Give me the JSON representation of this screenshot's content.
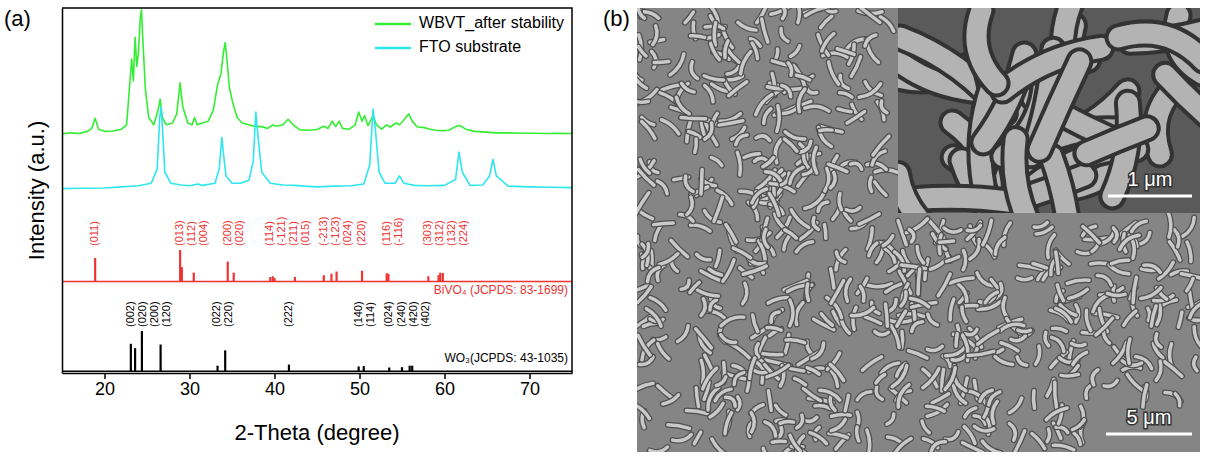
{
  "chart_data": {
    "type": "line",
    "panel_label": "(a)",
    "xlabel": "2-Theta (degree)",
    "ylabel": "Intensity (a.u.)",
    "xlim": [
      15,
      75
    ],
    "xticks": [
      20,
      30,
      40,
      50,
      60,
      70
    ],
    "ylim": [
      0,
      100
    ],
    "tick_labels": "x",
    "legend": "upper right",
    "series": [
      {
        "name": "WBVT_after stability",
        "type": "line",
        "color": "#33ee33",
        "x": [
          15,
          16,
          17,
          18,
          18.5,
          18.9,
          19.3,
          20,
          21,
          22,
          22.6,
          23.0,
          23.2,
          23.4,
          23.6,
          23.8,
          24.0,
          24.2,
          24.35,
          24.5,
          24.8,
          25.2,
          25.8,
          26.3,
          26.55,
          26.8,
          27.3,
          28.0,
          28.5,
          28.9,
          29.2,
          29.8,
          30.3,
          30.6,
          30.9,
          31.5,
          32.2,
          32.8,
          33.3,
          33.7,
          34.0,
          34.2,
          34.4,
          34.7,
          35.1,
          35.6,
          36.2,
          37.0,
          37.8,
          38.5,
          39.2,
          39.8,
          40.2,
          41.0,
          41.6,
          42.2,
          43.0,
          44.0,
          45.0,
          45.8,
          46.3,
          46.8,
          47.2,
          47.6,
          48.0,
          48.8,
          49.5,
          49.9,
          50.3,
          50.6,
          51.0,
          51.6,
          52.0,
          52.6,
          53.2,
          53.6,
          54.3,
          54.7,
          55.3,
          55.8,
          56.2,
          56.8,
          57.5,
          58.3,
          59.0,
          59.8,
          60.5,
          61.3,
          61.8,
          62.5,
          63.5,
          65.0,
          66.0,
          67.5,
          69.0,
          70.5,
          72.0,
          73.5,
          75.0
        ],
        "values": [
          65.5,
          65.8,
          65.6,
          66.2,
          67,
          69.8,
          66.8,
          66.2,
          66.3,
          66.8,
          68,
          80,
          86,
          80,
          92,
          84,
          88,
          97,
          99.5,
          92,
          78,
          70,
          68,
          72,
          75,
          70,
          68,
          68.5,
          71,
          79.5,
          73,
          68.5,
          68,
          70,
          68,
          68.5,
          69,
          72,
          79,
          82,
          88,
          90.5,
          86,
          78,
          74,
          70,
          68.5,
          68,
          67.5,
          67.5,
          67,
          68,
          67.6,
          68,
          69.5,
          68,
          66.6,
          66.5,
          66.7,
          67.6,
          67,
          69,
          67.5,
          69,
          67,
          66.8,
          68,
          71.5,
          69,
          70.5,
          67.8,
          70.5,
          68,
          66.8,
          68,
          67.4,
          68.5,
          68,
          69.5,
          71,
          69,
          67.4,
          67.3,
          66.8,
          66.5,
          66.4,
          66.5,
          67.5,
          67.8,
          66.8,
          66.2,
          66,
          65.8,
          65.8,
          65.7,
          65.7,
          65.6,
          65.7,
          65.6
        ]
      },
      {
        "name": "FTO substrate",
        "type": "line",
        "color": "#2ee6ee",
        "x": [
          15,
          17,
          20,
          22,
          24,
          25.5,
          26.2,
          26.5,
          26.65,
          26.8,
          27.1,
          27.8,
          29,
          30,
          31,
          31.5,
          33,
          33.5,
          33.8,
          34.0,
          34.3,
          35,
          36,
          37,
          37.5,
          37.8,
          38.1,
          38.5,
          39.5,
          41,
          42.5,
          43.5,
          45,
          47,
          49,
          50.5,
          51.2,
          51.6,
          51.9,
          52.3,
          53,
          54.2,
          54.7,
          55.2,
          56.5,
          58,
          60,
          61.3,
          61.7,
          62.1,
          63,
          64.5,
          65.3,
          65.7,
          66.1,
          67.5,
          70,
          72.5,
          75
        ],
        "values": [
          50.5,
          50.6,
          50.7,
          51,
          51.3,
          52,
          56,
          70,
          73,
          68,
          55,
          52,
          51.5,
          51.3,
          51.8,
          51.4,
          52,
          56,
          64.5,
          60,
          54,
          52,
          52,
          52.8,
          58,
          71.5,
          64,
          55,
          52,
          51.5,
          51.4,
          51.2,
          51,
          51.2,
          51.3,
          51.8,
          57,
          72.3,
          66,
          55,
          52,
          52,
          54,
          52,
          51.4,
          51.3,
          51.4,
          53,
          60.5,
          55,
          51.4,
          51.5,
          54,
          58.5,
          54,
          51.2,
          51,
          50.9,
          50.8
        ]
      },
      {
        "name": "BiVO₄ (JCPDS: 83-1699)",
        "type": "stem",
        "color": "#ee3333",
        "baseline": 25.1,
        "x": [
          18.9,
          28.9,
          29.1,
          30.5,
          34.5,
          35.2,
          39.5,
          39.8,
          40.0,
          42.4,
          45.8,
          46.7,
          47.3,
          50.3,
          53.2,
          53.4,
          58.1,
          59.3,
          59.5,
          59.8
        ],
        "values": [
          31.5,
          33.7,
          29,
          27.5,
          30.5,
          27.5,
          26.3,
          26.5,
          26,
          26.3,
          26.8,
          27.2,
          27.8,
          28,
          27.3,
          27.2,
          26.5,
          26.8,
          27.5,
          27.4
        ],
        "labels": [
          "(011)",
          "(013)",
          "(112)",
          "(004)",
          "(200)",
          "(020)",
          "(114)",
          "(-121)",
          "(211)",
          "(015)",
          "(-213)",
          "(-123)",
          "(024)",
          "(220)",
          "(116)",
          "(-116)",
          "(303)",
          "(312)",
          "(132)",
          "(224)"
        ]
      },
      {
        "name": "WO₃(JCPDS: 43-1035)",
        "type": "stem",
        "color": "#000000",
        "baseline": 0.5,
        "x": [
          23.1,
          23.6,
          24.4,
          26.6,
          33.3,
          34.2,
          41.7,
          49.9,
          50.5,
          53.5,
          55.0,
          55.9,
          56.2
        ],
        "values": [
          8.0,
          6.8,
          11.5,
          7.8,
          2.0,
          6.2,
          2.3,
          1.8,
          1.9,
          1.5,
          1.6,
          2.0,
          2.0
        ],
        "labels": [
          "(002)",
          "(020)",
          "(200)",
          "(120)",
          "(022)",
          "(220)",
          "(222)",
          "(140)",
          "(114)",
          "(024)",
          "(240)",
          "(420)",
          "(402)"
        ]
      }
    ]
  },
  "sem_image": {
    "panel_label": "(b)",
    "inset_scale_bar": "1 μm",
    "scale_bar": "5 μm"
  }
}
